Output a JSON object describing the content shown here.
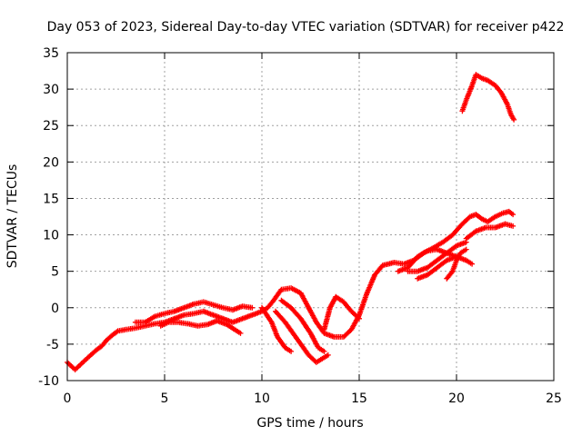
{
  "chart_data": {
    "type": "scatter",
    "title": "Day 053 of 2023, Sidereal Day-to-day VTEC variation (SDTVAR) for receiver p422",
    "xlabel": "GPS time / hours",
    "ylabel": "SDTVAR / TECUs",
    "xlim": [
      0,
      25
    ],
    "ylim": [
      -10,
      35
    ],
    "xticks": [
      0,
      5,
      10,
      15,
      20,
      25
    ],
    "yticks": [
      -10,
      -5,
      0,
      5,
      10,
      15,
      20,
      25,
      30,
      35
    ],
    "grid": true,
    "marker": "+",
    "color": "#ff0000",
    "series": [
      {
        "name": "main-track",
        "points": [
          [
            0.0,
            -7.5
          ],
          [
            0.2,
            -8.0
          ],
          [
            0.4,
            -8.5
          ],
          [
            0.6,
            -8.0
          ],
          [
            0.8,
            -7.5
          ],
          [
            1.0,
            -7.0
          ],
          [
            1.2,
            -6.5
          ],
          [
            1.5,
            -5.8
          ],
          [
            1.8,
            -5.2
          ],
          [
            2.0,
            -4.5
          ],
          [
            2.3,
            -3.8
          ],
          [
            2.6,
            -3.2
          ],
          [
            3.0,
            -3.0
          ],
          [
            3.5,
            -2.8
          ],
          [
            4.0,
            -2.5
          ],
          [
            4.5,
            -2.2
          ],
          [
            5.0,
            -2.0
          ],
          [
            5.5,
            -1.5
          ],
          [
            6.0,
            -1.0
          ],
          [
            6.5,
            -0.8
          ],
          [
            7.0,
            -0.5
          ],
          [
            7.5,
            -1.0
          ],
          [
            8.0,
            -1.5
          ],
          [
            8.5,
            -2.0
          ],
          [
            9.0,
            -1.5
          ],
          [
            9.5,
            -1.0
          ],
          [
            10.0,
            -0.5
          ],
          [
            10.3,
            0.0
          ],
          [
            10.6,
            1.0
          ],
          [
            11.0,
            2.5
          ],
          [
            11.5,
            2.7
          ],
          [
            12.0,
            2.0
          ],
          [
            12.4,
            0.0
          ],
          [
            12.8,
            -2.0
          ],
          [
            13.2,
            -3.5
          ],
          [
            13.7,
            -4.0
          ],
          [
            14.2,
            -4.0
          ],
          [
            14.6,
            -3.0
          ],
          [
            15.0,
            -1.0
          ],
          [
            15.4,
            2.0
          ],
          [
            15.8,
            4.5
          ],
          [
            16.2,
            5.8
          ],
          [
            16.8,
            6.2
          ],
          [
            17.3,
            6.0
          ],
          [
            17.8,
            6.5
          ],
          [
            18.3,
            7.5
          ],
          [
            18.8,
            8.2
          ],
          [
            19.3,
            9.0
          ],
          [
            19.8,
            10.0
          ],
          [
            20.3,
            11.5
          ],
          [
            20.7,
            12.5
          ],
          [
            21.0,
            12.8
          ],
          [
            21.3,
            12.2
          ],
          [
            21.6,
            11.8
          ],
          [
            22.0,
            12.5
          ],
          [
            22.4,
            13.0
          ],
          [
            22.7,
            13.2
          ],
          [
            22.9,
            12.8
          ]
        ]
      },
      {
        "name": "upper-wiggle",
        "points": [
          [
            3.5,
            -2.0
          ],
          [
            4.0,
            -2.0
          ],
          [
            4.5,
            -1.2
          ],
          [
            5.0,
            -0.8
          ],
          [
            5.5,
            -0.5
          ],
          [
            6.0,
            0.0
          ],
          [
            6.5,
            0.5
          ],
          [
            7.0,
            0.8
          ],
          [
            7.5,
            0.4
          ],
          [
            8.0,
            0.0
          ],
          [
            8.5,
            -0.3
          ],
          [
            9.0,
            0.2
          ],
          [
            9.5,
            0.0
          ]
        ]
      },
      {
        "name": "lower-wiggle",
        "points": [
          [
            4.8,
            -2.5
          ],
          [
            5.2,
            -2.0
          ],
          [
            5.7,
            -2.0
          ],
          [
            6.2,
            -2.2
          ],
          [
            6.7,
            -2.5
          ],
          [
            7.2,
            -2.3
          ],
          [
            7.7,
            -1.8
          ],
          [
            8.2,
            -2.3
          ],
          [
            8.6,
            -3.0
          ],
          [
            8.9,
            -3.5
          ]
        ]
      },
      {
        "name": "dip-branch-a",
        "points": [
          [
            10.0,
            0.0
          ],
          [
            10.5,
            -2.0
          ],
          [
            10.8,
            -4.0
          ],
          [
            11.2,
            -5.5
          ],
          [
            11.5,
            -6.0
          ]
        ]
      },
      {
        "name": "dip-branch-b",
        "points": [
          [
            10.7,
            -0.5
          ],
          [
            11.2,
            -2.0
          ],
          [
            11.6,
            -3.5
          ],
          [
            12.0,
            -5.0
          ],
          [
            12.4,
            -6.5
          ],
          [
            12.8,
            -7.5
          ],
          [
            13.1,
            -7.0
          ],
          [
            13.4,
            -6.5
          ]
        ]
      },
      {
        "name": "dip-branch-c",
        "points": [
          [
            11.0,
            1.0
          ],
          [
            11.5,
            0.0
          ],
          [
            12.0,
            -1.5
          ],
          [
            12.5,
            -3.5
          ],
          [
            12.9,
            -5.5
          ],
          [
            13.2,
            -6.0
          ]
        ]
      },
      {
        "name": "bump-13-15",
        "points": [
          [
            13.2,
            -3.0
          ],
          [
            13.5,
            0.0
          ],
          [
            13.8,
            1.5
          ],
          [
            14.2,
            0.8
          ],
          [
            14.6,
            -0.5
          ],
          [
            15.0,
            -1.5
          ]
        ]
      },
      {
        "name": "mid-branch-1",
        "points": [
          [
            17.0,
            5.0
          ],
          [
            17.5,
            5.5
          ],
          [
            18.0,
            7.0
          ],
          [
            18.5,
            7.8
          ],
          [
            19.0,
            8.0
          ],
          [
            19.5,
            7.5
          ],
          [
            20.0,
            8.5
          ],
          [
            20.5,
            9.0
          ]
        ]
      },
      {
        "name": "mid-branch-2",
        "points": [
          [
            17.5,
            5.0
          ],
          [
            18.0,
            5.0
          ],
          [
            18.5,
            5.5
          ],
          [
            19.0,
            6.5
          ],
          [
            19.5,
            7.5
          ],
          [
            20.0,
            7.0
          ],
          [
            20.5,
            6.5
          ],
          [
            20.8,
            6.0
          ]
        ]
      },
      {
        "name": "mid-branch-3",
        "points": [
          [
            18.0,
            4.0
          ],
          [
            18.5,
            4.5
          ],
          [
            19.0,
            5.5
          ],
          [
            19.5,
            6.5
          ],
          [
            20.0,
            7.0
          ]
        ]
      },
      {
        "name": "drop-19-20",
        "points": [
          [
            19.5,
            4.0
          ],
          [
            19.8,
            5.0
          ],
          [
            20.0,
            6.5
          ],
          [
            20.2,
            7.5
          ],
          [
            20.5,
            8.0
          ]
        ]
      },
      {
        "name": "tail-21-23",
        "points": [
          [
            20.5,
            9.5
          ],
          [
            21.0,
            10.5
          ],
          [
            21.5,
            11.0
          ],
          [
            22.0,
            11.0
          ],
          [
            22.5,
            11.5
          ],
          [
            22.9,
            11.2
          ]
        ]
      },
      {
        "name": "upper-right-segment",
        "points": [
          [
            20.3,
            27.0
          ],
          [
            20.5,
            28.5
          ],
          [
            20.8,
            30.5
          ],
          [
            21.0,
            32.0
          ],
          [
            21.3,
            31.5
          ],
          [
            21.6,
            31.2
          ],
          [
            22.0,
            30.5
          ],
          [
            22.3,
            29.5
          ],
          [
            22.6,
            28.0
          ],
          [
            22.8,
            26.5
          ],
          [
            22.95,
            25.8
          ]
        ]
      }
    ]
  }
}
